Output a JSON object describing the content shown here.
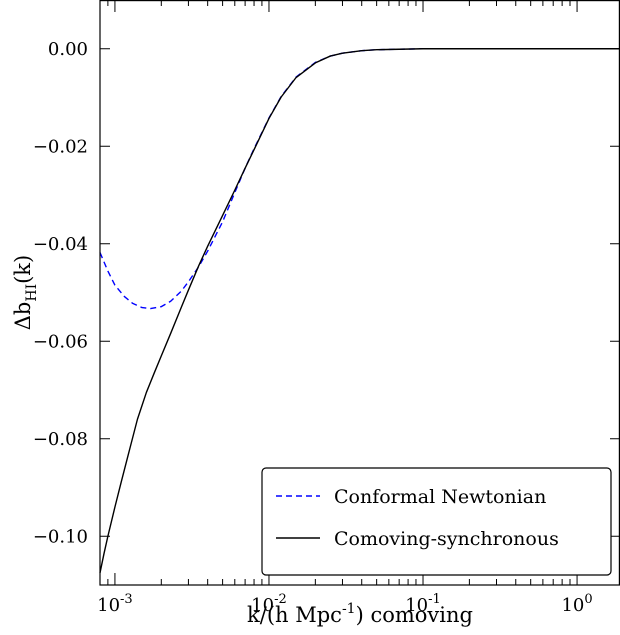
{
  "chart_data": {
    "type": "line",
    "xscale": "log",
    "xlim": [
      0.0008,
      1.9
    ],
    "ylim": [
      -0.11,
      0.01
    ],
    "xlabel": {
      "pre": "k/(h Mpc",
      "sup": "-1",
      "post": ") comoving"
    },
    "ylabel": {
      "main": "Δb",
      "sub": "HI",
      "post": "(k)"
    },
    "xticks": [
      {
        "value": 0.001,
        "base": "10",
        "exp": "-3"
      },
      {
        "value": 0.01,
        "base": "10",
        "exp": "-2"
      },
      {
        "value": 0.1,
        "base": "10",
        "exp": "-1"
      },
      {
        "value": 1.0,
        "base": "10",
        "exp": "0"
      }
    ],
    "yticks": [
      {
        "value": 0.0,
        "label": "0.00"
      },
      {
        "value": -0.02,
        "label": "−0.02"
      },
      {
        "value": -0.04,
        "label": "−0.04"
      },
      {
        "value": -0.06,
        "label": "−0.06"
      },
      {
        "value": -0.08,
        "label": "−0.08"
      },
      {
        "value": -0.1,
        "label": "−0.10"
      }
    ],
    "legend_position": "lower-right",
    "series": [
      {
        "name": "Conformal Newtonian",
        "color": "#0000ff",
        "style": "dashed",
        "x": [
          0.0008,
          0.0009,
          0.001,
          0.00115,
          0.0013,
          0.0015,
          0.0017,
          0.002,
          0.0023,
          0.0027,
          0.003,
          0.0035,
          0.004,
          0.005,
          0.006,
          0.007,
          0.008,
          0.01,
          0.012,
          0.015,
          0.02,
          0.025,
          0.03,
          0.04,
          0.05,
          0.07,
          0.1,
          0.2,
          0.5,
          1.0,
          1.9
        ],
        "y": [
          -0.0418,
          -0.0456,
          -0.0485,
          -0.0508,
          -0.0522,
          -0.0531,
          -0.0533,
          -0.0529,
          -0.0518,
          -0.0497,
          -0.0478,
          -0.0447,
          -0.0415,
          -0.0355,
          -0.0295,
          -0.0245,
          -0.0205,
          -0.0142,
          -0.0098,
          -0.0058,
          -0.0028,
          -0.0015,
          -0.0009,
          -0.0004,
          -0.0002,
          -0.0001,
          0.0,
          0.0,
          0.0,
          0.0,
          0.0
        ]
      },
      {
        "name": "Comoving-synchronous",
        "color": "#000000",
        "style": "solid",
        "x": [
          0.0008,
          0.00085,
          0.0009,
          0.001,
          0.0011,
          0.00125,
          0.0014,
          0.0016,
          0.0018,
          0.002,
          0.0023,
          0.0027,
          0.003,
          0.0035,
          0.004,
          0.005,
          0.006,
          0.007,
          0.008,
          0.01,
          0.012,
          0.015,
          0.02,
          0.025,
          0.03,
          0.04,
          0.05,
          0.07,
          0.1,
          0.2,
          0.5,
          1.0,
          1.9
        ],
        "y": [
          -0.1075,
          -0.1035,
          -0.1,
          -0.094,
          -0.0888,
          -0.082,
          -0.076,
          -0.0705,
          -0.0665,
          -0.063,
          -0.0584,
          -0.053,
          -0.0495,
          -0.0445,
          -0.0405,
          -0.0342,
          -0.029,
          -0.0245,
          -0.0207,
          -0.0143,
          -0.0099,
          -0.0059,
          -0.0029,
          -0.0015,
          -0.0009,
          -0.0004,
          -0.0002,
          -0.0001,
          0.0,
          0.0,
          0.0,
          0.0,
          0.0
        ]
      }
    ]
  }
}
